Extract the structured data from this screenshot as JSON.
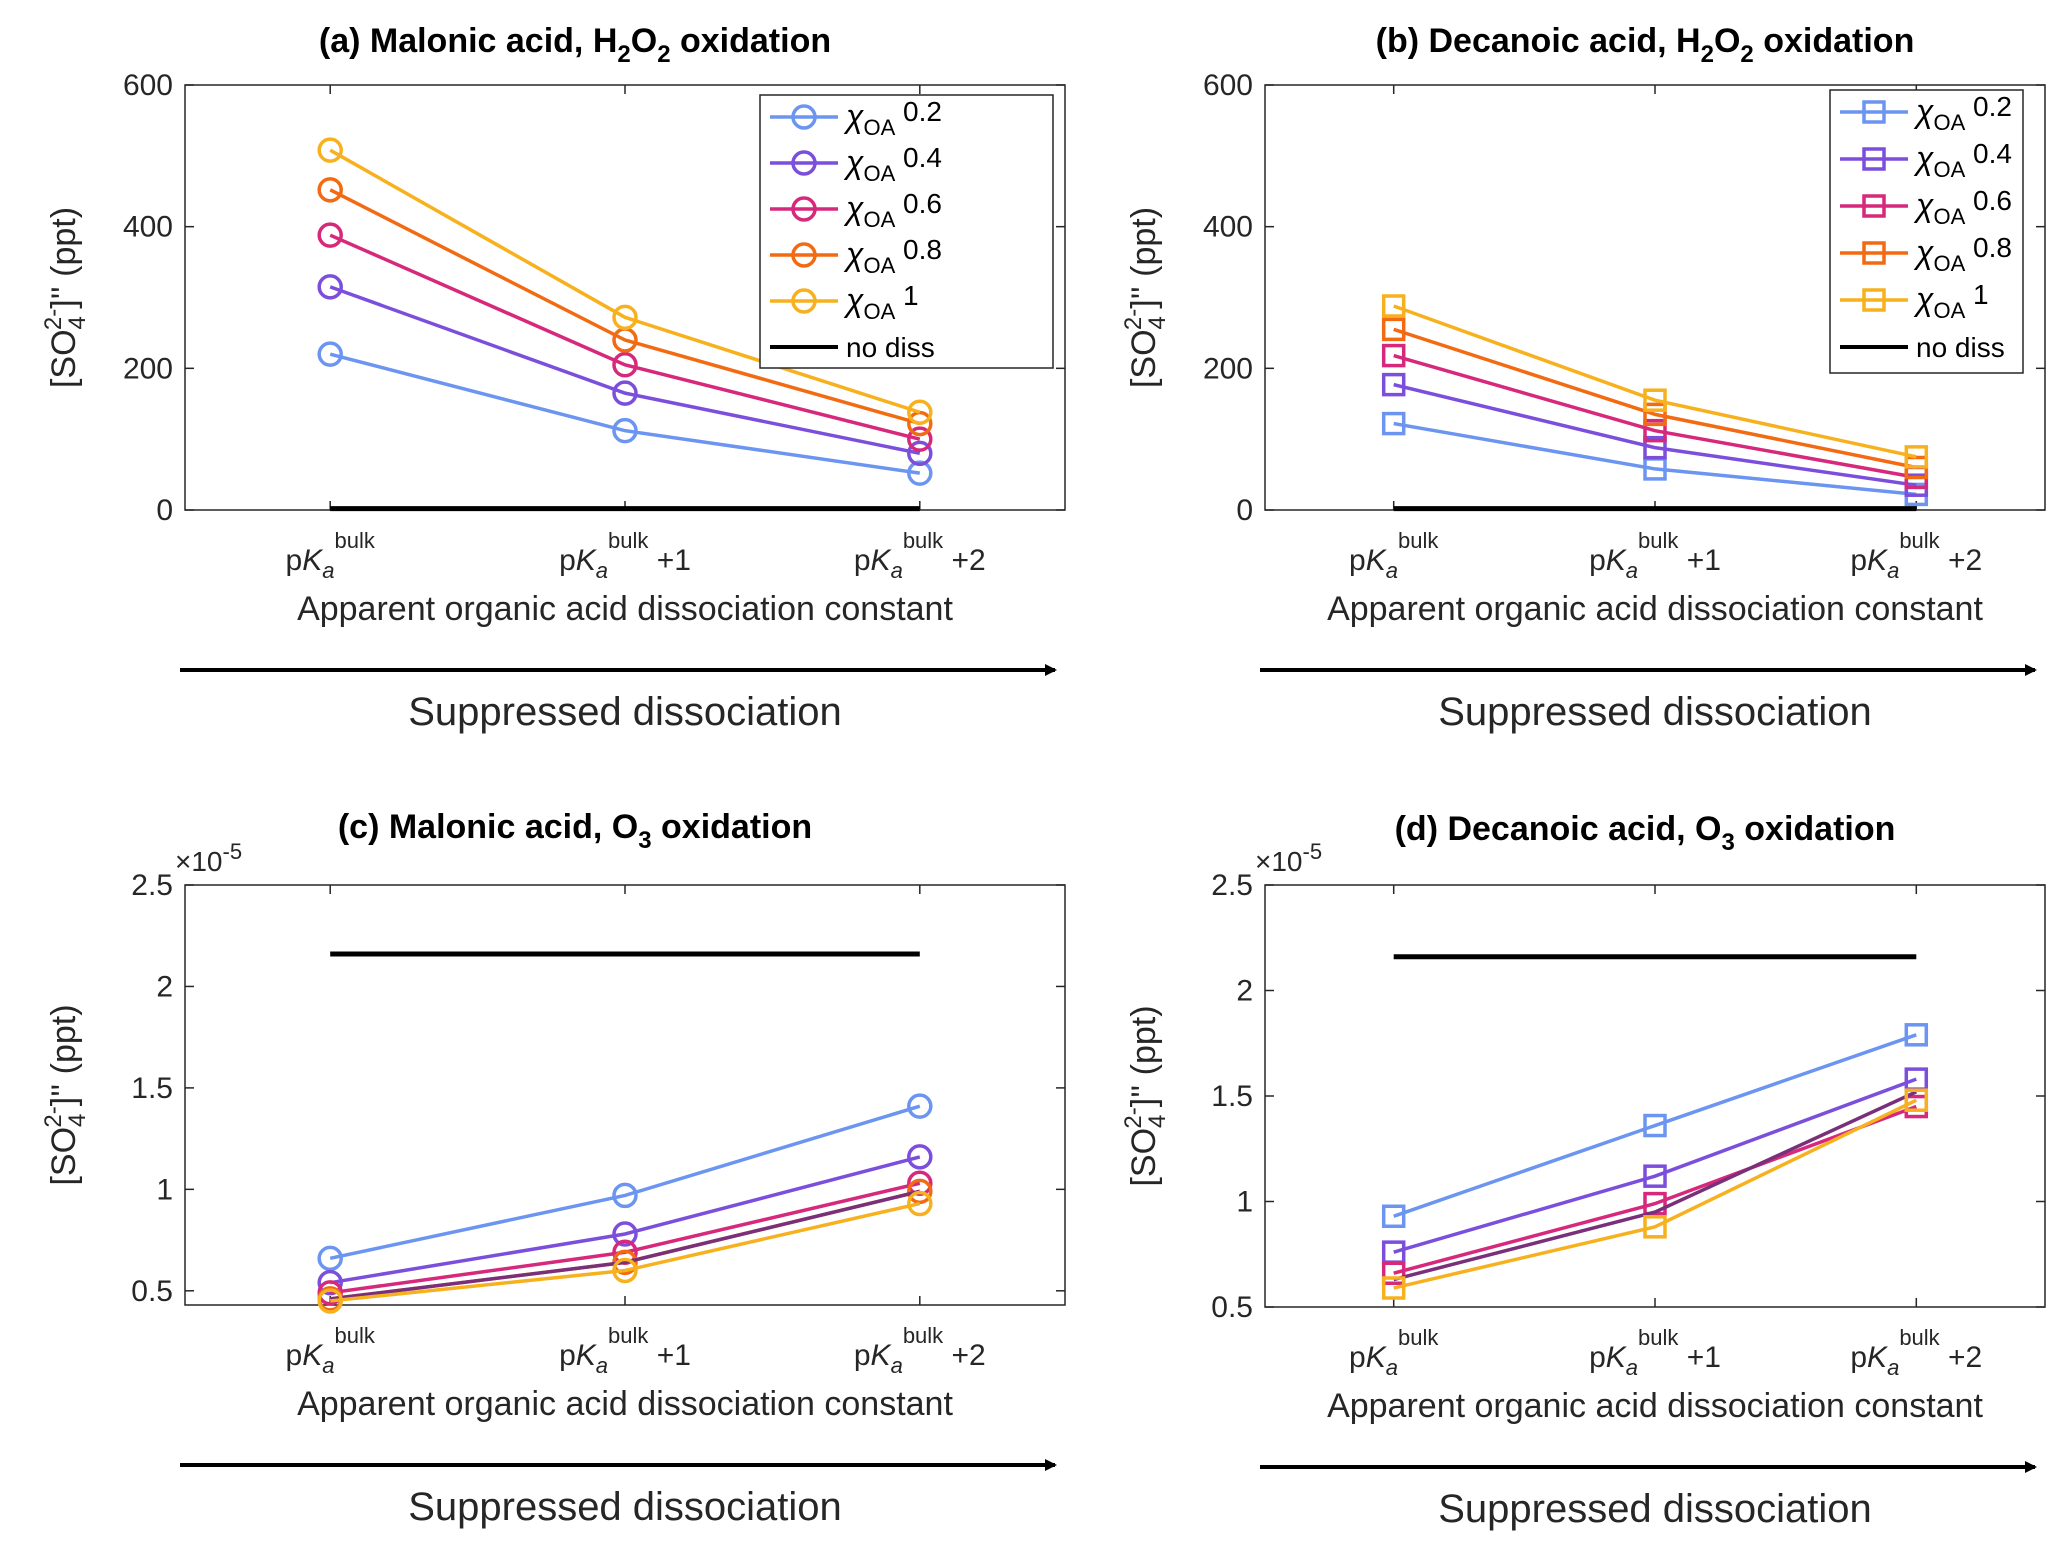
{
  "colors": {
    "x0.2": "#6b95f0",
    "x0.4": "#7b4fdc",
    "x0.6": "#d6297b",
    "x0.8": "#f26a12",
    "x1": "#f7b11e",
    "nodiss": "#000000",
    "extra": "#7a2f7a"
  },
  "xtick_labels": [
    {
      "pre": "p",
      "k": "K",
      "sub": "a",
      "sup": "bulk",
      "post": ""
    },
    {
      "pre": "p",
      "k": "K",
      "sub": "a",
      "sup": "bulk",
      "post": " +1"
    },
    {
      "pre": "p",
      "k": "K",
      "sub": "a",
      "sup": "bulk",
      "post": " +2"
    }
  ],
  "xlabel": "Apparent organic acid dissociation constant",
  "arrow_label": "Suppressed dissociation",
  "ylabel": {
    "open": "[SO",
    "sub": "4",
    "sup": "2-",
    "close": "]'' (ppt)"
  },
  "legend": {
    "chi": "χ",
    "sub": "OA",
    "entries": [
      {
        "key": "x0.2",
        "value": "0.2"
      },
      {
        "key": "x0.4",
        "value": "0.4"
      },
      {
        "key": "x0.6",
        "value": "0.6"
      },
      {
        "key": "x0.8",
        "value": "0.8"
      },
      {
        "key": "x1",
        "value": "1"
      }
    ],
    "nodiss_label": "no diss"
  },
  "chart_data": [
    {
      "panel": "a",
      "type": "line",
      "title": {
        "pre": "(a) Malonic acid, H",
        "s1": "2",
        "mid": "O",
        "s2": "2",
        "post": " oxidation"
      },
      "marker": "circle",
      "x": [
        0,
        1,
        2
      ],
      "ylim": [
        0,
        600
      ],
      "yticks": [
        0,
        200,
        400,
        600
      ],
      "ytick_labels": [
        "0",
        "200",
        "400",
        "600"
      ],
      "exponent": "",
      "legend": true,
      "series": [
        {
          "key": "x0.2",
          "values": [
            220,
            112,
            52
          ]
        },
        {
          "key": "x0.4",
          "values": [
            315,
            165,
            80
          ]
        },
        {
          "key": "x0.6",
          "values": [
            388,
            205,
            100
          ]
        },
        {
          "key": "x0.8",
          "values": [
            452,
            240,
            122
          ]
        },
        {
          "key": "x1",
          "values": [
            508,
            272,
            138
          ]
        },
        {
          "key": "nodiss",
          "values": [
            2,
            2,
            2
          ],
          "marker": "none"
        }
      ]
    },
    {
      "panel": "b",
      "type": "line",
      "title": {
        "pre": "(b) Decanoic acid, H",
        "s1": "2",
        "mid": "O",
        "s2": "2",
        "post": " oxidation"
      },
      "marker": "square",
      "x": [
        0,
        1,
        2
      ],
      "ylim": [
        0,
        600
      ],
      "yticks": [
        0,
        200,
        400,
        600
      ],
      "ytick_labels": [
        "0",
        "200",
        "400",
        "600"
      ],
      "exponent": "",
      "legend": true,
      "series": [
        {
          "key": "x0.2",
          "values": [
            122,
            58,
            22
          ]
        },
        {
          "key": "x0.4",
          "values": [
            177,
            88,
            35
          ]
        },
        {
          "key": "x0.6",
          "values": [
            218,
            112,
            46
          ]
        },
        {
          "key": "x0.8",
          "values": [
            255,
            135,
            60
          ]
        },
        {
          "key": "x1",
          "values": [
            288,
            155,
            75
          ]
        },
        {
          "key": "nodiss",
          "values": [
            2,
            2,
            2
          ],
          "marker": "none"
        }
      ]
    },
    {
      "panel": "c",
      "type": "line",
      "title": {
        "pre": "(c) Malonic acid, O",
        "s1": "3",
        "mid": "",
        "s2": "",
        "post": " oxidation"
      },
      "marker": "circle",
      "x": [
        0,
        1,
        2
      ],
      "ylim": [
        0.43,
        2.5
      ],
      "yticks": [
        0.5,
        1,
        1.5,
        2,
        2.5
      ],
      "ytick_labels": [
        "0.5",
        "1",
        "1.5",
        "2",
        "2.5"
      ],
      "exponent": {
        "base": "×10",
        "exp": "-5"
      },
      "legend": false,
      "series": [
        {
          "key": "x0.2",
          "values": [
            0.66,
            0.97,
            1.41
          ]
        },
        {
          "key": "x0.4",
          "values": [
            0.54,
            0.78,
            1.16
          ]
        },
        {
          "key": "x0.6",
          "values": [
            0.49,
            0.69,
            1.03
          ]
        },
        {
          "key": "x0.8",
          "values": [
            0.46,
            0.64,
            0.99
          ]
        },
        {
          "key": "extra",
          "values": [
            0.46,
            0.64,
            0.99
          ],
          "marker": "none"
        },
        {
          "key": "x1",
          "values": [
            0.45,
            0.6,
            0.93
          ]
        },
        {
          "key": "nodiss",
          "values": [
            2.16,
            2.16,
            2.16
          ],
          "marker": "none"
        }
      ]
    },
    {
      "panel": "d",
      "type": "line",
      "title": {
        "pre": "(d) Decanoic acid, O",
        "s1": "3",
        "mid": "",
        "s2": "",
        "post": " oxidation"
      },
      "marker": "square",
      "x": [
        0,
        1,
        2
      ],
      "ylim": [
        0.5,
        2.5
      ],
      "yticks": [
        0.5,
        1,
        1.5,
        2,
        2.5
      ],
      "ytick_labels": [
        "0.5",
        "1",
        "1.5",
        "2",
        "2.5"
      ],
      "exponent": {
        "base": "×10",
        "exp": "-5"
      },
      "legend": false,
      "series": [
        {
          "key": "x0.2",
          "values": [
            0.93,
            1.36,
            1.79
          ]
        },
        {
          "key": "x0.4",
          "values": [
            0.76,
            1.12,
            1.58
          ]
        },
        {
          "key": "x0.6",
          "values": [
            0.66,
            0.99,
            1.45
          ]
        },
        {
          "key": "extra",
          "values": [
            0.63,
            0.95,
            1.52
          ],
          "marker": "none"
        },
        {
          "key": "x1",
          "values": [
            0.59,
            0.88,
            1.48
          ]
        },
        {
          "key": "nodiss",
          "values": [
            2.16,
            2.16,
            2.16
          ],
          "marker": "none"
        }
      ]
    }
  ]
}
